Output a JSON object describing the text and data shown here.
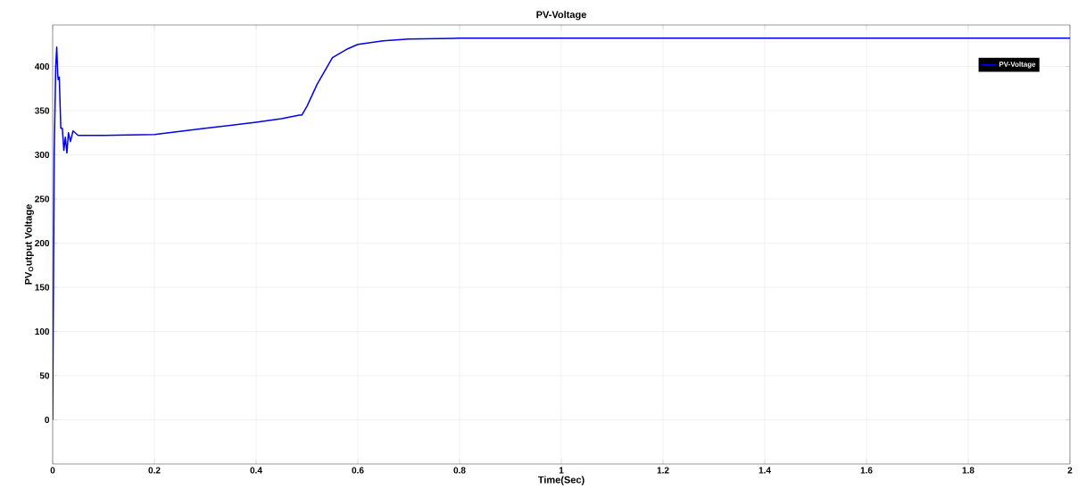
{
  "chart_data": {
    "type": "line",
    "title": "PV-Voltage",
    "xlabel": "Time(Sec)",
    "ylabel": "PV$_{O}$utput Voltage",
    "series": [
      {
        "name": "PV-Voltage",
        "color": "#0000e6",
        "x": [
          0,
          0.003,
          0.006,
          0.008,
          0.01,
          0.011,
          0.013,
          0.016,
          0.019,
          0.022,
          0.025,
          0.028,
          0.031,
          0.035,
          0.04,
          0.05,
          0.1,
          0.2,
          0.3,
          0.4,
          0.45,
          0.485,
          0.49,
          0.5,
          0.52,
          0.55,
          0.58,
          0.6,
          0.65,
          0.7,
          0.8,
          1,
          1.5,
          2
        ],
        "values": [
          0,
          300,
          400,
          422,
          390,
          385,
          388,
          330,
          330,
          305,
          320,
          302,
          325,
          315,
          327,
          322,
          322,
          323,
          330,
          337,
          341,
          345,
          345,
          355,
          380,
          410,
          420,
          425,
          429,
          431,
          432,
          432,
          432,
          432
        ]
      }
    ],
    "xlim": [
      0,
      2
    ],
    "ylim": [
      -50,
      447
    ],
    "xticks": [
      0,
      0.2,
      0.4,
      0.6,
      0.8,
      1,
      1.2,
      1.4,
      1.6,
      1.8,
      2
    ],
    "yticks": [
      0,
      50,
      100,
      150,
      200,
      250,
      300,
      350,
      400
    ],
    "grid": true,
    "legend": "top right",
    "line_style": "solid",
    "marker": "none"
  }
}
